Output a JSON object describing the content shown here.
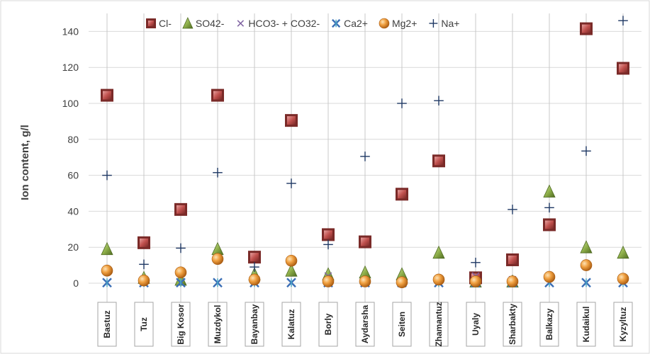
{
  "chart_data": {
    "type": "scatter",
    "ylabel": "Ion content, g/l",
    "ylim": [
      0,
      150
    ],
    "yticks": [
      0,
      20,
      40,
      60,
      80,
      100,
      120,
      140
    ],
    "categories": [
      "Bastuz",
      "Tuz",
      "Big Kosor",
      "Muzdykol",
      "Bayanbay",
      "Kalatuz",
      "Borly",
      "Aydarsha",
      "Seiten",
      "Zhamantuz",
      "Uyaly",
      "Sharbakty",
      "Balkazy",
      "Kudaikul",
      "Kyzyltuz"
    ],
    "legend_position": "top",
    "series": [
      {
        "name": "Cl-",
        "marker": "square",
        "color": "#c0504d",
        "values": [
          104.5,
          22.5,
          41,
          104.5,
          14.5,
          90.5,
          27,
          23,
          49.5,
          68,
          3,
          13,
          32.5,
          141.5,
          119.5
        ]
      },
      {
        "name": "SO42-",
        "marker": "triangle",
        "color": "#9bbb59",
        "values": [
          19,
          3,
          2,
          19,
          5,
          7,
          5,
          6,
          5,
          17,
          1,
          1,
          51,
          20,
          17
        ]
      },
      {
        "name": "HCO3- + CO32-",
        "marker": "x",
        "color": "#8064a2",
        "values": [
          0.5,
          0.5,
          0.5,
          0.5,
          0.5,
          0.5,
          4,
          0.5,
          0.5,
          0.5,
          4,
          2,
          0.5,
          0.5,
          0.5
        ]
      },
      {
        "name": "Ca2+",
        "marker": "star",
        "color": "#4bacc6",
        "values": [
          0.3,
          0.3,
          0.3,
          0.3,
          0.3,
          0.3,
          0.3,
          0.3,
          0.3,
          0.3,
          0.3,
          0.3,
          0.3,
          0.3,
          0.3
        ]
      },
      {
        "name": "Mg2+",
        "marker": "circle",
        "color": "#e8862a",
        "values": [
          7,
          1.5,
          6,
          13.5,
          2,
          12.5,
          1,
          1,
          0.5,
          2,
          1,
          1,
          3.5,
          10,
          2.5
        ]
      },
      {
        "name": "Na+",
        "marker": "plus",
        "color": "#1f3864",
        "values": [
          60,
          10.5,
          19.5,
          61.5,
          9,
          55.5,
          21.5,
          70.5,
          100,
          101.5,
          11.5,
          41,
          42,
          73.5,
          146
        ]
      }
    ]
  }
}
